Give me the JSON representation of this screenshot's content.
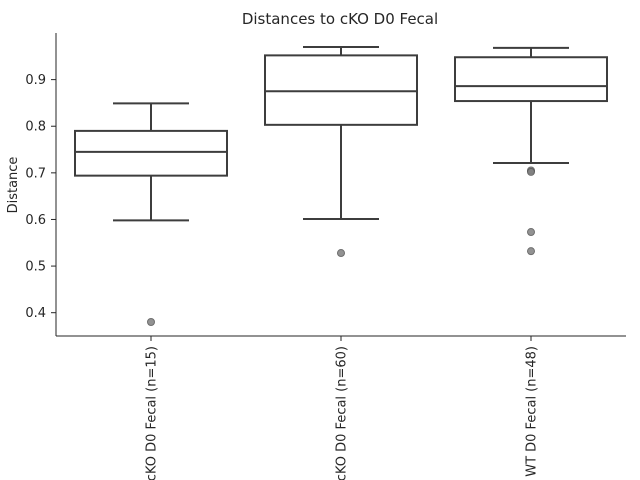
{
  "chart_data": {
    "type": "box",
    "title": "Distances to cKO D0 Fecal",
    "xlabel": "",
    "ylabel": "Distance",
    "ylim": [
      0.35,
      1.0
    ],
    "yticks": [
      0.4,
      0.5,
      0.6,
      0.7,
      0.8,
      0.9
    ],
    "grid": false,
    "categories": [
      "cKO D0 Fecal (n=15)",
      "cKO D0 Fecal (n=60)",
      "WT D0 Fecal (n=48)"
    ],
    "boxes": [
      {
        "whisker_low": 0.598,
        "q1": 0.694,
        "median": 0.745,
        "q3": 0.79,
        "whisker_high": 0.849,
        "outliers": [
          0.38
        ]
      },
      {
        "whisker_low": 0.601,
        "q1": 0.803,
        "median": 0.875,
        "q3": 0.952,
        "whisker_high": 0.97,
        "outliers": [
          0.528
        ]
      },
      {
        "whisker_low": 0.721,
        "q1": 0.854,
        "median": 0.886,
        "q3": 0.948,
        "whisker_high": 0.968,
        "outliers": [
          0.705,
          0.702,
          0.573,
          0.532
        ]
      }
    ]
  }
}
